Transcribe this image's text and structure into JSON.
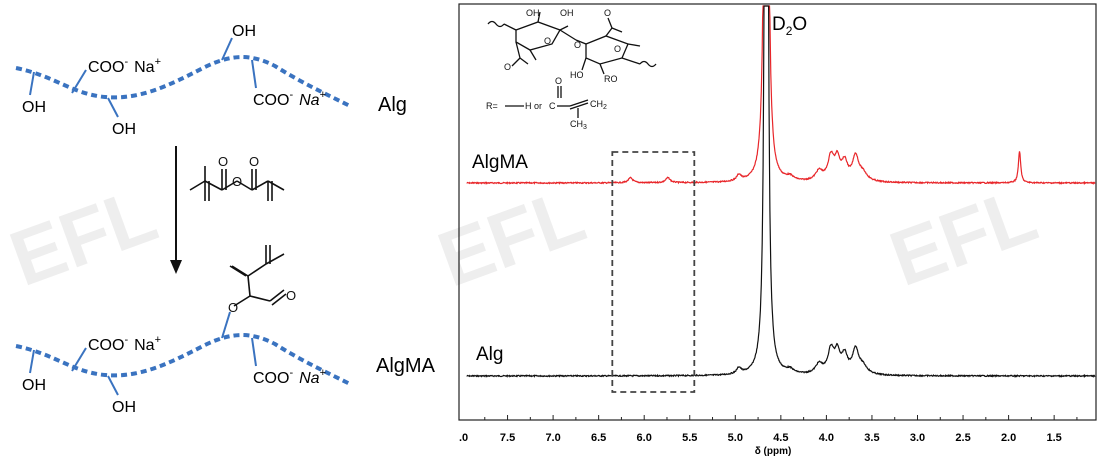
{
  "watermark": {
    "text": "EFL",
    "color": "#eeeeee"
  },
  "scheme": {
    "top": {
      "label": "Alg",
      "groups": {
        "coo_left": "COO",
        "na_left": "Na",
        "oh_left": "OH",
        "oh_bottom": "OH",
        "oh_top": "OH",
        "coo_right": "COO",
        "na_right": "Na"
      }
    },
    "bottom": {
      "label": "AlgMA",
      "groups": {
        "coo_left": "COO",
        "na_left": "Na",
        "oh_left": "OH",
        "oh_bottom": "OH",
        "coo_right": "COO",
        "na_right": "Na"
      }
    },
    "charge_minus": "-",
    "charge_plus": "+",
    "chain_color": "#3a73c0"
  },
  "spectrum": {
    "inset": {
      "r_eq": "R=",
      "h": "H",
      "or_word": "or",
      "ho": "HO",
      "ro": "RO",
      "oh_a": "OH",
      "oh_b": "OH",
      "o_c": "O",
      "ch2": "CH",
      "ch3": "CH",
      "sub2": "2",
      "sub3": "3",
      "c": "C"
    },
    "solvent_peak": {
      "main": "D",
      "sub": "2",
      "tail": "O"
    },
    "traces": [
      {
        "name": "AlgMA",
        "color": "#e8262a"
      },
      {
        "name": "Alg",
        "color": "#111111"
      }
    ],
    "axis": {
      "xlabel": "δ (ppm)",
      "ticks": [
        "7.5",
        "7.0",
        "6.5",
        "6.0",
        "5.5",
        "5.0",
        "4.5",
        "4.0",
        "3.5",
        "3.0",
        "2.5",
        "2.0",
        "1.5"
      ],
      "left_partial_tick": ".0"
    },
    "highlight_box": {
      "from_ppm": 6.35,
      "to_ppm": 5.45
    }
  }
}
